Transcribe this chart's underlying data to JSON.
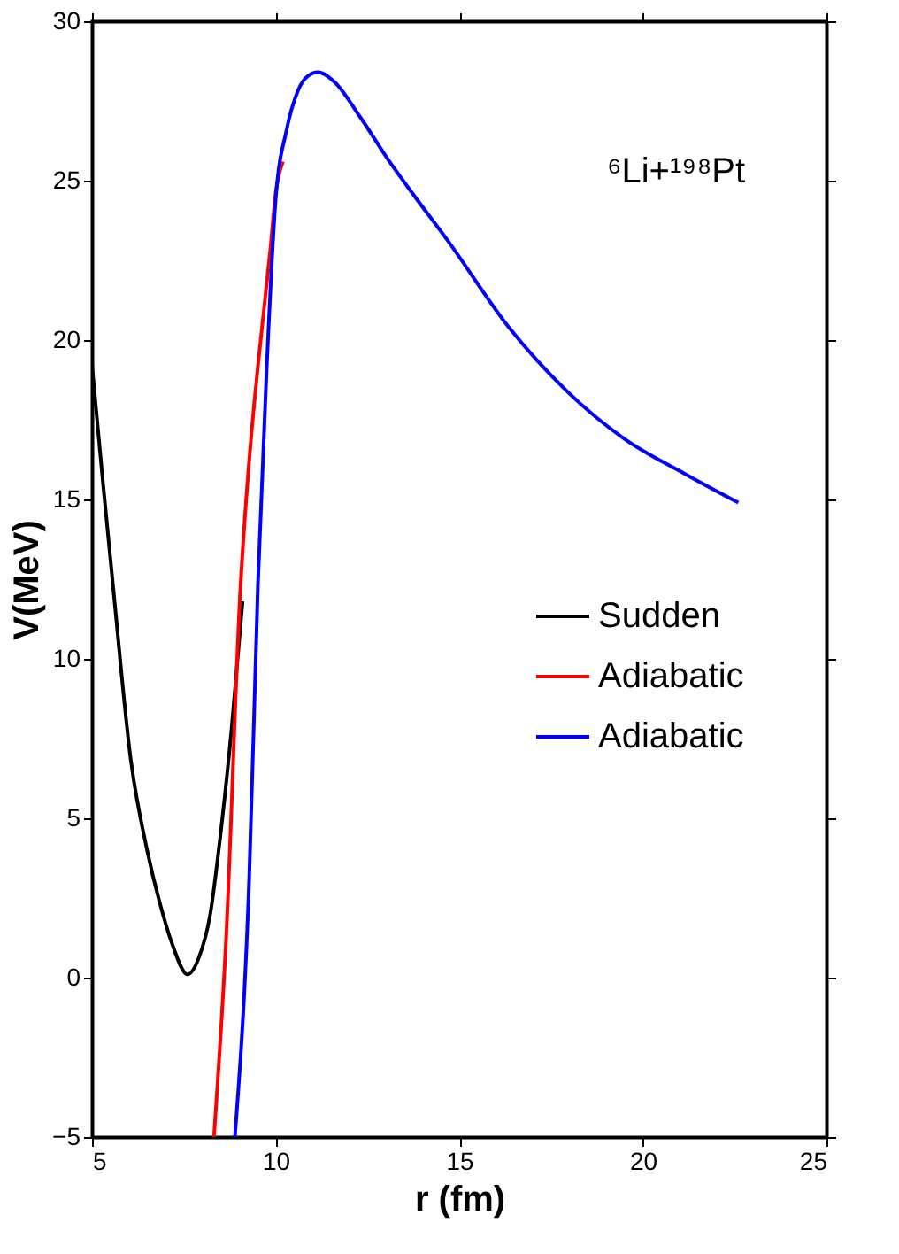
{
  "chart_data": {
    "type": "line",
    "xlabel": "r (fm)",
    "ylabel": "V(MeV)",
    "annotations": [
      "⁶Li+¹⁹⁸Pt"
    ],
    "xlim": [
      5,
      25
    ],
    "xticks": [
      5,
      10,
      15,
      20,
      25
    ],
    "ylim": [
      -5,
      30
    ],
    "yticks": [
      -5,
      0,
      5,
      10,
      15,
      20,
      25,
      30
    ],
    "grid": false,
    "legend": "right",
    "line_style": "solid",
    "marker": "none",
    "series": [
      {
        "name": "Sudden",
        "color": "#000000",
        "x": [
          5.0,
          5.3,
          5.58,
          6.06,
          6.5,
          6.88,
          7.2,
          7.6,
          7.9,
          8.22,
          8.5,
          8.8,
          9.1
        ],
        "values": [
          19.2,
          15.5,
          12.2,
          6.8,
          4.0,
          2.2,
          1.0,
          0.1,
          0.6,
          2.0,
          4.5,
          7.8,
          11.8
        ]
      },
      {
        "name": "Adiabatic",
        "color": "#ff0000",
        "x": [
          8.32,
          8.65,
          9.04,
          9.3,
          9.52,
          9.86,
          10.0,
          10.2
        ],
        "values": [
          -5,
          1.2,
          12.2,
          16.5,
          19.2,
          22.9,
          24.6,
          25.6
        ]
      },
      {
        "name": "Adiabatic",
        "color": "#0000ff",
        "x": [
          8.89,
          9.28,
          9.52,
          9.76,
          10.0,
          10.3,
          10.6,
          10.9,
          11.15,
          11.6,
          12.3,
          13.1,
          13.6,
          14.7,
          16.35,
          17.93,
          19.5,
          21.15,
          22.6
        ],
        "values": [
          -5,
          3.1,
          12.4,
          19.2,
          24.4,
          26.6,
          27.8,
          28.3,
          28.4,
          28.1,
          27.0,
          25.6,
          24.8,
          23.1,
          20.4,
          18.4,
          16.9,
          15.8,
          14.9
        ]
      }
    ]
  }
}
